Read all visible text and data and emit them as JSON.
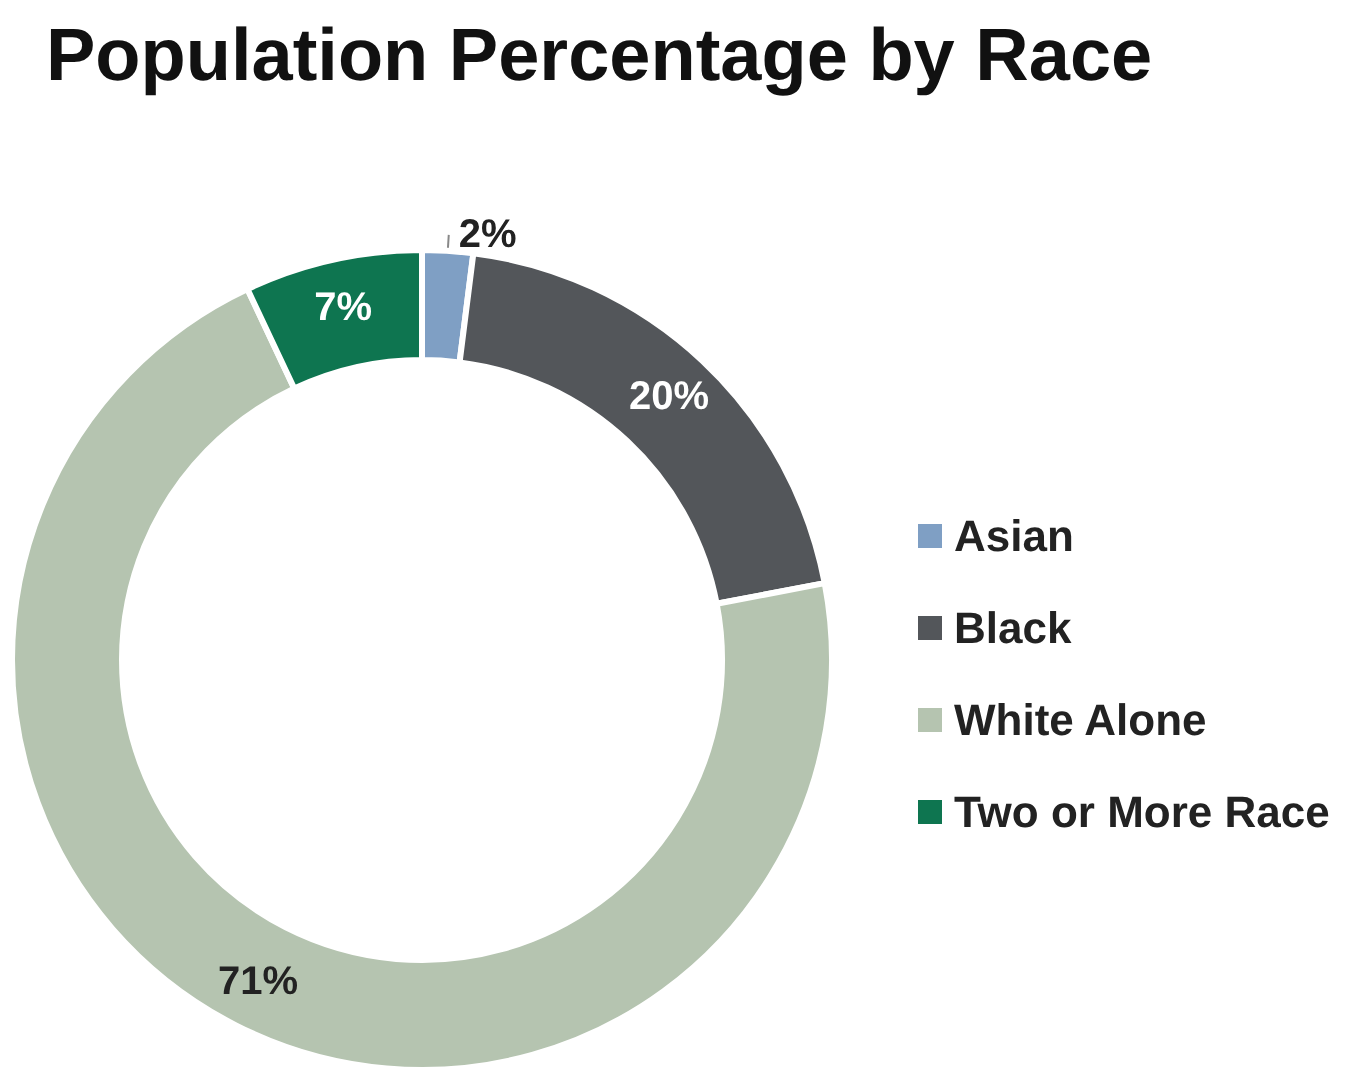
{
  "chart_data": {
    "type": "donut",
    "title": "Population Percentage by Race",
    "categories": [
      "Asian",
      "Black",
      "White Alone",
      "Two or More Race"
    ],
    "values": [
      2,
      20,
      71,
      7
    ],
    "colors": [
      "#7f9fc4",
      "#53565a",
      "#b5c4b0",
      "#0e7550"
    ],
    "value_labels": [
      "2%",
      "20%",
      "71%",
      "7%"
    ],
    "legend": "right"
  }
}
